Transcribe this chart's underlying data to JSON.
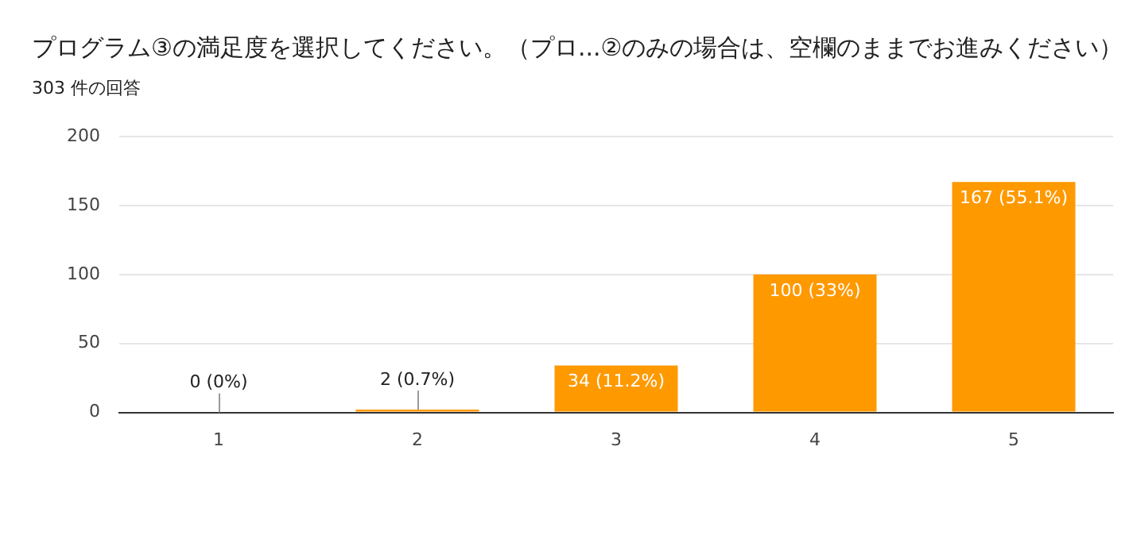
{
  "chart_data": {
    "type": "bar",
    "title": "プログラム③の満足度を選択してください。（プロ...②のみの場合は、空欄のままでお進みください）",
    "subtitle": "303 件の回答",
    "categories": [
      "1",
      "2",
      "3",
      "4",
      "5"
    ],
    "values": [
      0,
      2,
      34,
      100,
      167
    ],
    "value_labels": [
      "0 (0%)",
      "2 (0.7%)",
      "34 (11.2%)",
      "100 (33%)",
      "167 (55.1%)"
    ],
    "color": "#ff9900",
    "ylim": [
      0,
      200
    ],
    "yticks": [
      0,
      50,
      100,
      150,
      200
    ],
    "grid": "y",
    "legend": false
  }
}
